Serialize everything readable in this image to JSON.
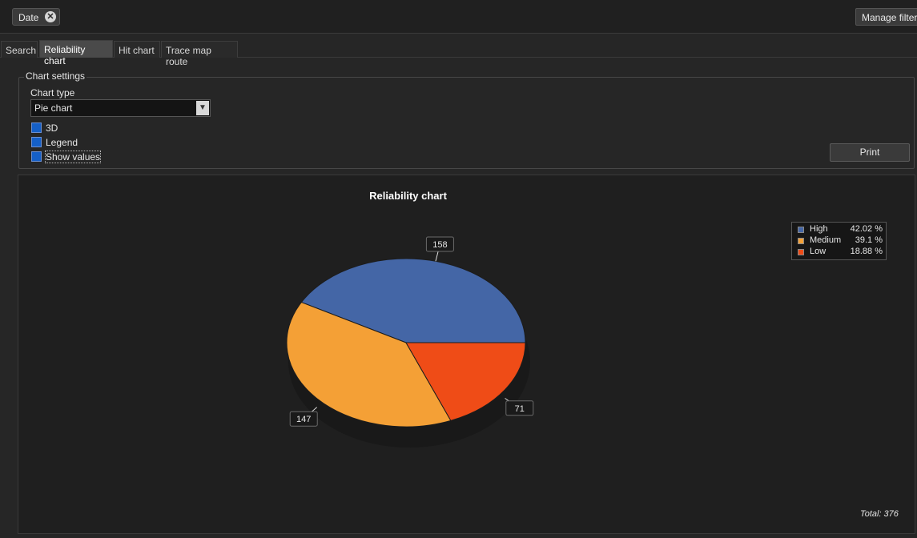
{
  "filters": {
    "date_chip_label": "Date",
    "close_glyph": "✕"
  },
  "header": {
    "manage_filters_label": "Manage filters"
  },
  "tabs": [
    {
      "label": "Search",
      "active": false
    },
    {
      "label": "Reliability chart",
      "active": true
    },
    {
      "label": "Hit chart",
      "active": false
    },
    {
      "label": "Trace map route",
      "active": false
    }
  ],
  "settings": {
    "group_title": "Chart settings",
    "chart_type_label": "Chart type",
    "chart_type_value": "Pie chart",
    "dropdown_icon": "chevron-down-icon",
    "checkboxes": [
      {
        "label": "3D",
        "checked": true
      },
      {
        "label": "Legend",
        "checked": true
      },
      {
        "label": "Show values",
        "checked": true
      }
    ],
    "print_label": "Print"
  },
  "colors": {
    "high": "#4466a6",
    "medium": "#f4a036",
    "low": "#ef4c17",
    "checkbox": "#1560c8"
  },
  "chart_data": {
    "type": "pie",
    "title": "Reliability chart",
    "three_d": true,
    "categories": [
      "High",
      "Medium",
      "Low"
    ],
    "values": [
      158,
      147,
      71
    ],
    "percent_labels": [
      "42.02 %",
      "39.1 %",
      "18.88 %"
    ],
    "legend_position": "top-right",
    "total_label": "Total: 376"
  }
}
